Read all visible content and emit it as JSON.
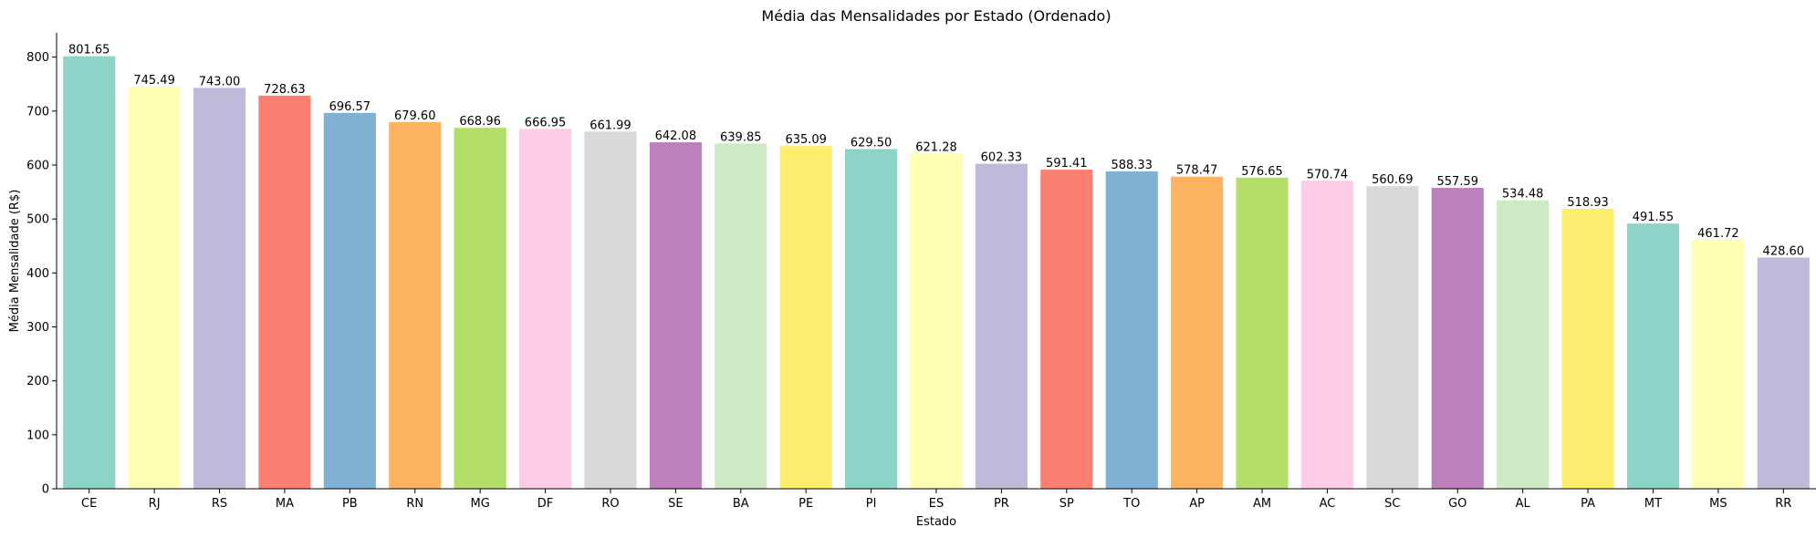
{
  "chart_data": {
    "type": "bar",
    "title": "Média das Mensalidades por Estado (Ordenado)",
    "xlabel": "Estado",
    "ylabel": "Média Mensalidade (R$)",
    "ylim": [
      0,
      845
    ],
    "yticks": [
      0,
      100,
      200,
      300,
      400,
      500,
      600,
      700,
      800
    ],
    "grid": false,
    "categories": [
      "CE",
      "RJ",
      "RS",
      "MA",
      "PB",
      "RN",
      "MG",
      "DF",
      "RO",
      "SE",
      "BA",
      "PE",
      "PI",
      "ES",
      "PR",
      "SP",
      "TO",
      "AP",
      "AM",
      "AC",
      "SC",
      "GO",
      "AL",
      "PA",
      "MT",
      "MS",
      "RR"
    ],
    "values": [
      801.65,
      745.49,
      743.0,
      728.63,
      696.57,
      679.6,
      668.96,
      666.95,
      661.99,
      642.08,
      639.85,
      635.09,
      629.5,
      621.28,
      602.33,
      591.41,
      588.33,
      578.47,
      576.65,
      570.74,
      560.69,
      557.59,
      534.48,
      518.93,
      491.55,
      461.72,
      428.6
    ],
    "value_labels": [
      "801.65",
      "745.49",
      "743.00",
      "728.63",
      "696.57",
      "679.60",
      "668.96",
      "666.95",
      "661.99",
      "642.08",
      "639.85",
      "635.09",
      "629.50",
      "621.28",
      "602.33",
      "591.41",
      "588.33",
      "578.47",
      "576.65",
      "570.74",
      "560.69",
      "557.59",
      "534.48",
      "518.93",
      "491.55",
      "461.72",
      "428.60"
    ],
    "palette": [
      "#8dd3c7",
      "#ffffb3",
      "#bebada",
      "#fb8072",
      "#80b1d3",
      "#fdb462",
      "#b3de69",
      "#fccde5",
      "#d9d9d9",
      "#bc80bd",
      "#ccebc5",
      "#ffed6f"
    ]
  }
}
